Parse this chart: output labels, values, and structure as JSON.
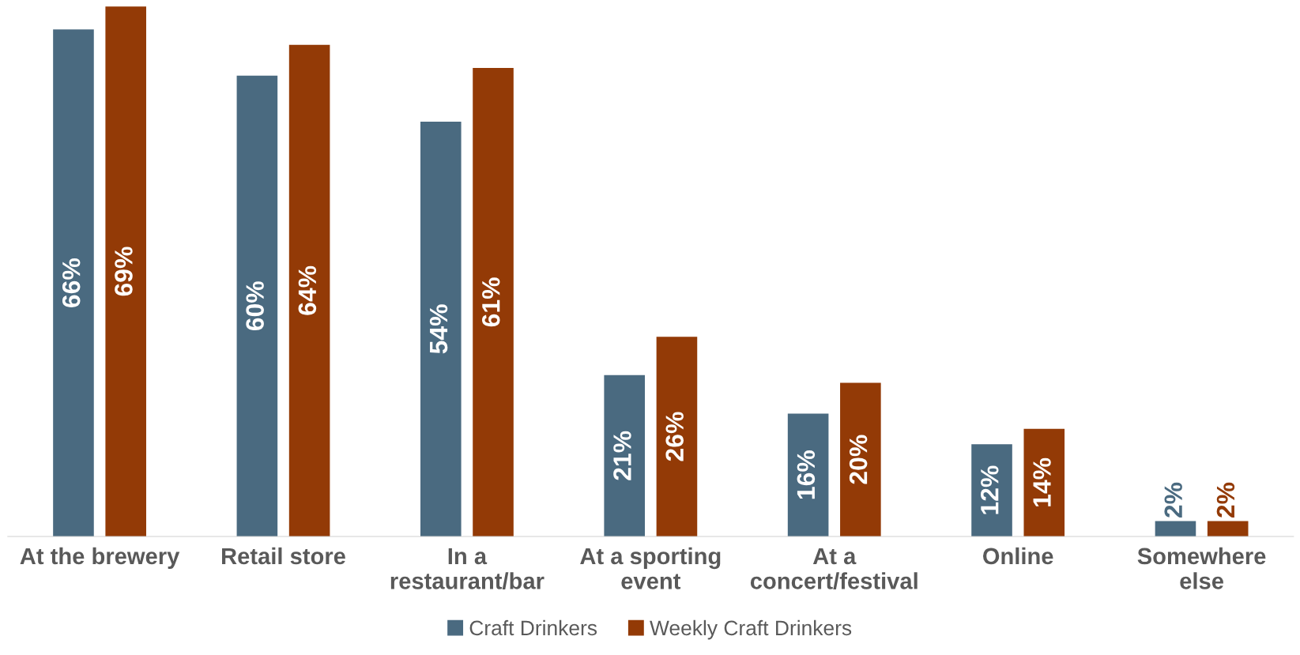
{
  "chart_data": {
    "type": "bar",
    "categories": [
      "At the brewery",
      "Retail store",
      "In a\nrestaurant/bar",
      "At a sporting\nevent",
      "At a\nconcert/festival",
      "Online",
      "Somewhere\nelse"
    ],
    "series": [
      {
        "name": "Craft Drinkers",
        "color": "#4a6a80",
        "values": [
          66,
          60,
          54,
          21,
          16,
          12,
          2
        ],
        "value_labels": [
          "66%",
          "60%",
          "54%",
          "21%",
          "16%",
          "12%",
          "2%"
        ]
      },
      {
        "name": "Weekly Craft Drinkers",
        "color": "#933a06",
        "values": [
          69,
          64,
          61,
          26,
          20,
          14,
          2
        ],
        "value_labels": [
          "69%",
          "64%",
          "61%",
          "26%",
          "20%",
          "14%",
          "2%"
        ]
      }
    ],
    "legend": "bottom",
    "grid": false
  }
}
